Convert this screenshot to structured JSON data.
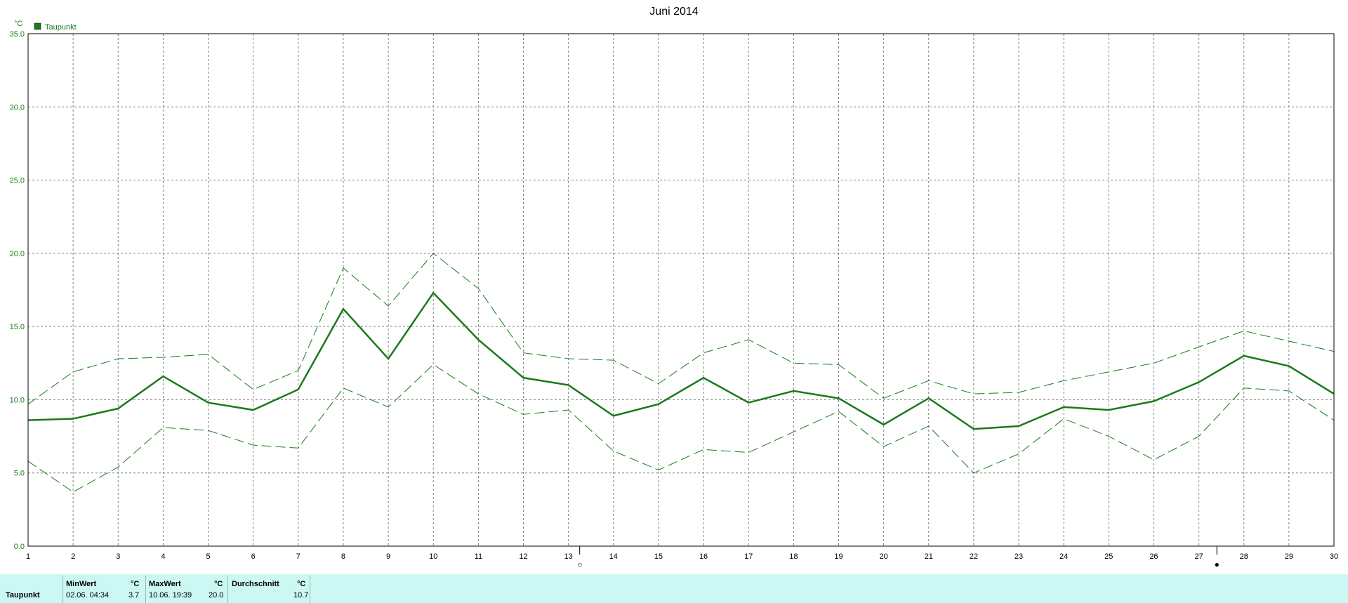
{
  "chart_data": {
    "type": "line",
    "title": "Juni 2014",
    "ylabel": "°C",
    "xlabel": "",
    "ylim": [
      0,
      35
    ],
    "xlim": [
      1,
      30
    ],
    "yticks": [
      "0.0",
      "5.0",
      "10.0",
      "15.0",
      "20.0",
      "25.0",
      "30.0",
      "35.0"
    ],
    "categories": [
      1,
      2,
      3,
      4,
      5,
      6,
      7,
      8,
      9,
      10,
      11,
      12,
      13,
      14,
      15,
      16,
      17,
      18,
      19,
      20,
      21,
      22,
      23,
      24,
      25,
      26,
      27,
      28,
      29,
      30
    ],
    "grid": true,
    "legend": {
      "position": "top-left",
      "entries": [
        "Taupunkt"
      ]
    },
    "series": [
      {
        "name": "Taupunkt",
        "style": "solid",
        "values": [
          8.6,
          8.7,
          9.4,
          11.6,
          9.8,
          9.3,
          10.7,
          16.2,
          12.8,
          17.3,
          14.1,
          11.5,
          11.0,
          8.9,
          9.7,
          11.5,
          9.8,
          10.6,
          10.1,
          8.3,
          10.1,
          8.0,
          8.2,
          9.5,
          9.3,
          9.9,
          11.2,
          13.0,
          12.3,
          10.4
        ]
      },
      {
        "style": "dashed",
        "values": [
          9.7,
          11.9,
          12.8,
          12.9,
          13.1,
          10.7,
          12.0,
          19.0,
          16.4,
          20.0,
          17.6,
          13.2,
          12.8,
          12.7,
          11.1,
          13.2,
          14.1,
          12.5,
          12.4,
          10.1,
          11.3,
          10.4,
          10.5,
          11.3,
          11.9,
          12.5,
          13.6,
          14.7,
          14.0,
          13.3
        ]
      },
      {
        "style": "dashed",
        "values": [
          5.8,
          3.7,
          5.4,
          8.1,
          7.9,
          6.9,
          6.7,
          10.8,
          9.5,
          12.4,
          10.4,
          9.0,
          9.3,
          6.5,
          5.2,
          6.6,
          6.4,
          7.8,
          9.2,
          6.8,
          8.2,
          5.0,
          6.3,
          8.7,
          7.5,
          5.9,
          7.5,
          10.8,
          10.6,
          8.6
        ]
      }
    ],
    "markers": [
      {
        "x": 13.25,
        "symbol": "○"
      },
      {
        "x": 27.4,
        "symbol": "●"
      }
    ]
  },
  "colors": {
    "series": "#1a7a1a",
    "stats_bg": "#ccf8f4"
  },
  "stats": {
    "row_label": "Taupunkt",
    "min": {
      "header": "MinWert",
      "unit": "°C",
      "time": "02.06.  04:34",
      "value": "3.7"
    },
    "max": {
      "header": "MaxWert",
      "unit": "°C",
      "time": "10.06.  19:39",
      "value": "20.0"
    },
    "avg": {
      "header": "Durchschnitt",
      "unit": "°C",
      "value": "10.7"
    }
  }
}
